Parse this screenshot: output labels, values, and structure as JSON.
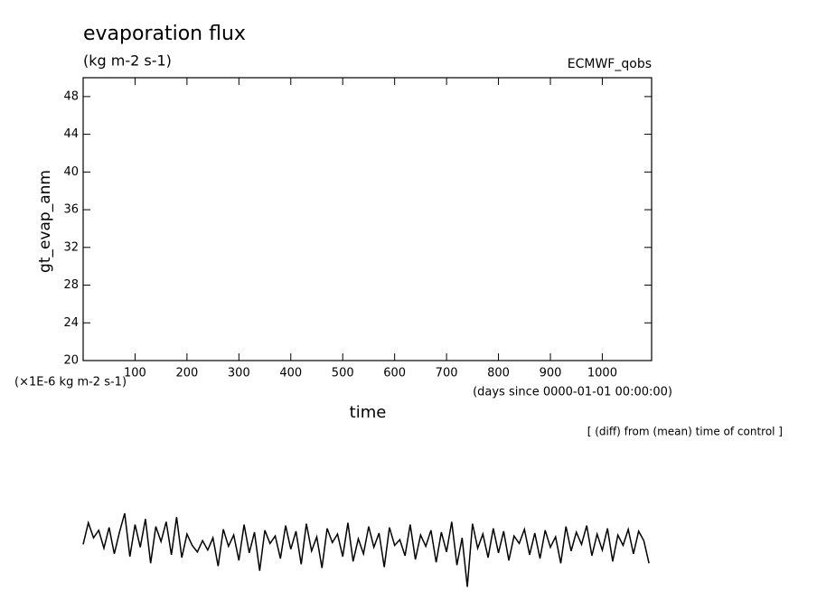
{
  "chart_data": {
    "type": "line",
    "title": "evaporation flux",
    "units": "(kg m-2 s-1)",
    "dataset": "ECMWF_qobs",
    "ylabel": "gt_evap_anm",
    "yscale_label": "(×1E-6 kg m-2 s-1)",
    "xlabel": "time",
    "xunits": "(days since 0000-01-01 00:00:00)",
    "annotation": "[ (diff) from (mean) time of control ]",
    "color": "#000000",
    "xlim": [
      0,
      1095
    ],
    "ylim": [
      20,
      50
    ],
    "xticks": [
      100,
      200,
      300,
      400,
      500,
      600,
      700,
      800,
      900,
      1000
    ],
    "yticks": [
      20,
      24,
      28,
      32,
      36,
      40,
      44,
      48
    ],
    "x": [
      0,
      10,
      20,
      30,
      40,
      50,
      60,
      70,
      80,
      90,
      100,
      110,
      120,
      130,
      140,
      150,
      160,
      170,
      180,
      190,
      200,
      210,
      220,
      230,
      240,
      250,
      260,
      270,
      280,
      290,
      300,
      310,
      320,
      330,
      340,
      350,
      360,
      370,
      380,
      390,
      400,
      410,
      420,
      430,
      440,
      450,
      460,
      470,
      480,
      490,
      500,
      510,
      520,
      530,
      540,
      550,
      560,
      570,
      580,
      590,
      600,
      610,
      620,
      630,
      640,
      650,
      660,
      670,
      680,
      690,
      700,
      710,
      720,
      730,
      740,
      750,
      760,
      770,
      780,
      790,
      800,
      810,
      820,
      830,
      840,
      850,
      860,
      870,
      880,
      890,
      900,
      910,
      920,
      930,
      940,
      950,
      960,
      970,
      980,
      990,
      1000,
      1010,
      1020,
      1030,
      1040,
      1050,
      1060,
      1070,
      1080,
      1090
    ],
    "values": [
      0.5,
      2.8,
      1.2,
      2.0,
      0.1,
      2.3,
      -0.5,
      1.8,
      3.8,
      -0.8,
      2.6,
      0.2,
      3.2,
      -1.5,
      2.4,
      0.8,
      2.9,
      -0.6,
      3.4,
      -0.9,
      1.6,
      0.4,
      -0.3,
      0.9,
      -0.1,
      1.2,
      -1.8,
      2.1,
      0.3,
      1.5,
      -1.2,
      2.6,
      -0.4,
      1.8,
      -2.3,
      2.0,
      0.6,
      1.4,
      -1.0,
      2.5,
      0.0,
      1.9,
      -1.6,
      2.7,
      -0.2,
      1.3,
      -2.0,
      2.2,
      0.7,
      1.6,
      -0.8,
      2.8,
      -1.3,
      1.1,
      -0.5,
      2.4,
      0.2,
      1.7,
      -1.9,
      2.3,
      0.4,
      1.0,
      -0.7,
      2.6,
      -1.1,
      1.5,
      0.3,
      2.0,
      -1.4,
      1.8,
      -0.3,
      2.9,
      -1.7,
      1.2,
      -4.0,
      2.7,
      0.1,
      1.6,
      -0.9,
      2.2,
      -0.4,
      1.9,
      -1.2,
      1.4,
      0.6,
      2.1,
      -0.6,
      1.7,
      -1.0,
      2.0,
      0.2,
      1.3,
      -1.5,
      2.4,
      -0.2,
      1.8,
      0.5,
      2.5,
      -0.7,
      1.6,
      -0.1,
      2.2,
      -1.3,
      1.5,
      0.4,
      2.1,
      -0.5,
      1.9,
      0.9,
      -1.5
    ]
  }
}
